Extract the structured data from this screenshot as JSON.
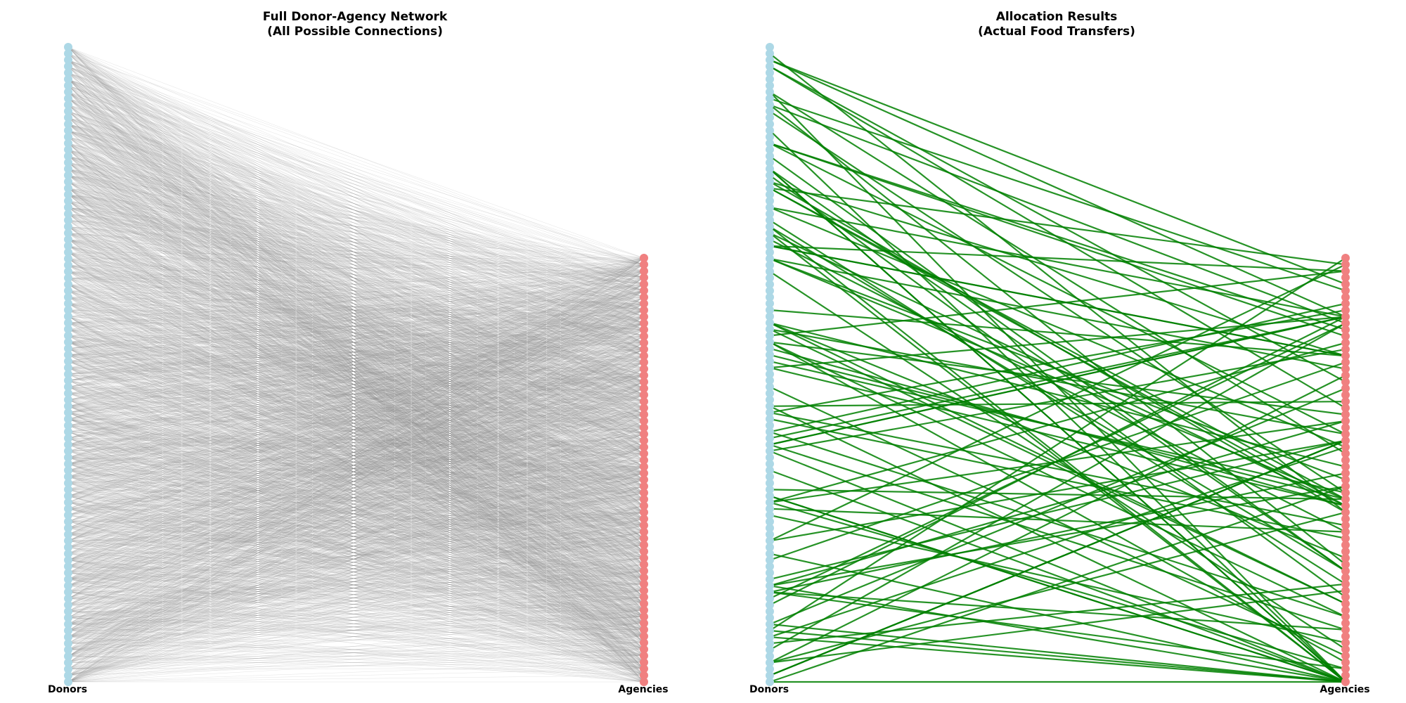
{
  "panels": [
    {
      "title_line1": "Full Donor-Agency Network",
      "title_line2": "(All Possible Connections)",
      "left_label": "Donors",
      "right_label": "Agencies",
      "edge_style": "all-possible",
      "edge_color": "#808080"
    },
    {
      "title_line1": "Allocation Results",
      "title_line2": "(Actual Food Transfers)",
      "left_label": "Donors",
      "right_label": "Agencies",
      "edge_style": "allocations",
      "edge_color": "#008000"
    }
  ],
  "colors": {
    "donor_node": "#add8e6",
    "agency_node": "#f08080",
    "full_edge": "#808080",
    "allocation_edge": "#008000"
  },
  "network": {
    "donor_count": 100,
    "agency_count": 66
  }
}
